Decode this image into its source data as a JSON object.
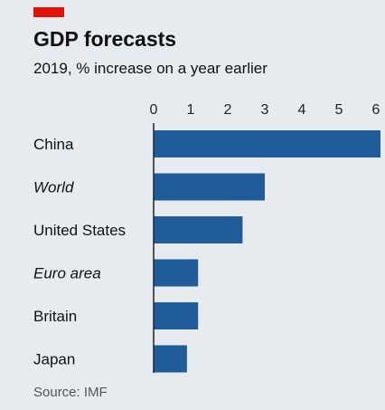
{
  "title": "GDP forecasts",
  "subtitle": "2019, % increase on a year earlier",
  "source": "Source: IMF",
  "colors": {
    "accent": "#e3120b",
    "bar": "#1f5c99",
    "background": "#e6ebef",
    "axis": "#222222"
  },
  "chart_data": {
    "type": "bar",
    "orientation": "horizontal",
    "categories": [
      "China",
      "World",
      "United States",
      "Euro area",
      "Britain",
      "Japan"
    ],
    "italic_categories": [
      "World",
      "Euro area"
    ],
    "values": [
      6.2,
      3.0,
      2.4,
      1.2,
      1.2,
      0.9
    ],
    "xlim": [
      0,
      6
    ],
    "xticks": [
      0,
      1,
      2,
      3,
      4,
      5,
      6
    ],
    "xlabel": "",
    "ylabel": ""
  }
}
